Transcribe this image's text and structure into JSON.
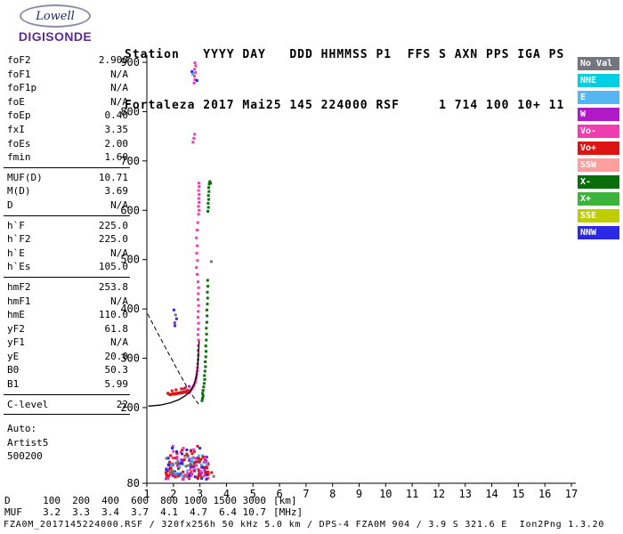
{
  "logo": {
    "line1": "Lowell",
    "line2": "DIGISONDE"
  },
  "header": {
    "line1": "Station   YYYY DAY   DDD HHMMSS P1  FFS S AXN PPS IGA PS",
    "line2": "Fortaleza 2017 Mai25 145 224000 RSF     1 714 100 10+ 11"
  },
  "params": {
    "groups": [
      {
        "rows": [
          [
            "foF2",
            "2.900"
          ],
          [
            "foF1",
            "N/A"
          ],
          [
            "foF1p",
            "N/A"
          ],
          [
            "foE",
            "N/A"
          ],
          [
            "foEp",
            "0.40"
          ],
          [
            "fxI",
            "3.35"
          ],
          [
            "foEs",
            "2.00"
          ],
          [
            "fmin",
            "1.60"
          ]
        ]
      },
      {
        "rows": [
          [
            "MUF(D)",
            "10.71"
          ],
          [
            "M(D)",
            "3.69"
          ],
          [
            "D",
            "N/A"
          ]
        ]
      },
      {
        "rows": [
          [
            "h`F",
            "225.0"
          ],
          [
            "h`F2",
            "225.0"
          ],
          [
            "h`E",
            "N/A"
          ],
          [
            "h`Es",
            "105.0"
          ]
        ]
      },
      {
        "rows": [
          [
            "hmF2",
            "253.8"
          ],
          [
            "hmF1",
            "N/A"
          ],
          [
            "hmE",
            "110.0"
          ],
          [
            "yF2",
            "61.8"
          ],
          [
            "yF1",
            "N/A"
          ],
          [
            "yE",
            "20.0"
          ],
          [
            "B0",
            "50.3"
          ],
          [
            "B1",
            "5.99"
          ]
        ]
      },
      {
        "rows": [
          [
            "C-level",
            "22"
          ]
        ]
      },
      {
        "rows": [
          [
            "Auto:",
            ""
          ],
          [
            "Artist5",
            ""
          ],
          [
            "500200",
            ""
          ]
        ]
      }
    ]
  },
  "colors": {
    "noval": "#75757f",
    "nne": "#00cfe4",
    "e": "#55b6f2",
    "w": "#b019c8",
    "vom": "#f13bb0",
    "vop": "#dc1414",
    "ssw": "#ff9e9e",
    "xm": "#0a6e0a",
    "xp": "#3cb43c",
    "sse": "#becd00",
    "nnw": "#2a2ae6"
  },
  "legend": {
    "items": [
      {
        "key": "noval",
        "label": "No Val"
      },
      {
        "key": "nne",
        "label": "NNE"
      },
      {
        "key": "e",
        "label": "E"
      },
      {
        "key": "w",
        "label": "W"
      },
      {
        "key": "vom",
        "label": "Vo-"
      },
      {
        "key": "vop",
        "label": "Vo+"
      },
      {
        "key": "ssw",
        "label": "SSW"
      },
      {
        "key": "xm",
        "label": "X-"
      },
      {
        "key": "xp",
        "label": "X+"
      },
      {
        "key": "sse",
        "label": "SSE"
      },
      {
        "key": "nnw",
        "label": "NNW"
      }
    ]
  },
  "muf_table": {
    "rows": [
      {
        "label": "D",
        "values": [
          "100",
          "200",
          "400",
          "600",
          "800",
          "1000",
          "1500",
          "3000"
        ],
        "unit": "[km]"
      },
      {
        "label": "MUF",
        "values": [
          "3.2",
          "3.3",
          "3.4",
          "3.7",
          "4.1",
          "4.7",
          "6.4",
          "10.7"
        ],
        "unit": "[MHz]"
      }
    ]
  },
  "footer": {
    "info": "FZA0M_2017145224000.RSF / 320fx256h 50 kHz 5.0 km / DPS-4 FZA0M 904 / 3.9 S 321.6 E  Ion2Png 1.3.20"
  },
  "chart_data": {
    "type": "scatter",
    "x_axis": {
      "min": 1,
      "max": 17,
      "ticks": [
        1,
        2,
        3,
        4,
        5,
        6,
        7,
        8,
        9,
        10,
        11,
        12,
        13,
        14,
        15,
        16,
        17
      ],
      "unit": "[MHz]"
    },
    "y_axis": {
      "min": 80,
      "max": 900,
      "ticks": [
        900,
        800,
        700,
        600,
        500,
        400,
        300,
        200,
        80
      ],
      "unit": "[km]"
    },
    "series": [
      {
        "name": "F-trace O-mode (Vo-)",
        "color_key": "vom",
        "points": [
          [
            2.5,
            230
          ],
          [
            2.55,
            231
          ],
          [
            2.6,
            230
          ],
          [
            2.63,
            233
          ],
          [
            2.66,
            236
          ],
          [
            2.7,
            238
          ],
          [
            2.73,
            241
          ],
          [
            2.76,
            244
          ],
          [
            2.79,
            247
          ],
          [
            2.82,
            251
          ],
          [
            2.84,
            256
          ],
          [
            2.86,
            261
          ],
          [
            2.88,
            267
          ],
          [
            2.9,
            274
          ],
          [
            2.91,
            281
          ],
          [
            2.92,
            289
          ],
          [
            2.93,
            297
          ],
          [
            2.94,
            306
          ],
          [
            2.93,
            316
          ],
          [
            2.94,
            326
          ],
          [
            2.95,
            337
          ],
          [
            2.93,
            348
          ],
          [
            2.94,
            359
          ],
          [
            2.95,
            371
          ],
          [
            2.93,
            383
          ],
          [
            2.94,
            395
          ],
          [
            2.95,
            407
          ],
          [
            2.93,
            419
          ],
          [
            2.94,
            431
          ],
          [
            2.95,
            443
          ],
          [
            2.93,
            455
          ],
          [
            2.9,
            470
          ],
          [
            2.87,
            484
          ],
          [
            2.91,
            498
          ],
          [
            2.88,
            513
          ],
          [
            2.9,
            528
          ],
          [
            2.87,
            544
          ],
          [
            2.9,
            560
          ],
          [
            2.92,
            575
          ],
          [
            2.95,
            592
          ],
          [
            2.97,
            600
          ],
          [
            2.95,
            608
          ],
          [
            2.97,
            616
          ],
          [
            2.96,
            624
          ],
          [
            2.97,
            632
          ],
          [
            2.95,
            640
          ],
          [
            2.97,
            648
          ],
          [
            2.96,
            655
          ],
          [
            2.74,
            738
          ],
          [
            2.77,
            746
          ],
          [
            2.8,
            754
          ],
          [
            2.78,
            858
          ],
          [
            2.81,
            865
          ],
          [
            2.79,
            872
          ],
          [
            2.83,
            879
          ],
          [
            2.8,
            886
          ],
          [
            2.84,
            893
          ],
          [
            2.81,
            899
          ]
        ]
      },
      {
        "name": "F-trace low (Vo+)",
        "color_key": "vop",
        "points": [
          [
            1.79,
            229
          ],
          [
            1.84,
            227
          ],
          [
            1.89,
            226
          ],
          [
            1.94,
            227
          ],
          [
            1.99,
            228
          ],
          [
            2.04,
            227
          ],
          [
            2.09,
            229
          ],
          [
            2.14,
            228
          ],
          [
            2.19,
            230
          ],
          [
            2.24,
            229
          ],
          [
            2.29,
            231
          ],
          [
            2.34,
            230
          ],
          [
            2.39,
            232
          ],
          [
            2.44,
            231
          ],
          [
            2.49,
            233
          ],
          [
            2.54,
            235
          ],
          [
            2.3,
            238
          ],
          [
            2.1,
            236
          ],
          [
            1.95,
            234
          ],
          [
            2.45,
            240
          ],
          [
            3.44,
            97
          ]
        ]
      },
      {
        "name": "X-trace (X-)",
        "color_key": "xm",
        "points": [
          [
            3.08,
            214
          ],
          [
            3.1,
            219
          ],
          [
            3.12,
            224
          ],
          [
            3.1,
            229
          ],
          [
            3.12,
            235
          ],
          [
            3.14,
            242
          ],
          [
            3.16,
            249
          ],
          [
            3.18,
            257
          ],
          [
            3.17,
            265
          ],
          [
            3.19,
            274
          ],
          [
            3.21,
            283
          ],
          [
            3.2,
            293
          ],
          [
            3.22,
            303
          ],
          [
            3.23,
            314
          ],
          [
            3.22,
            325
          ],
          [
            3.24,
            337
          ],
          [
            3.25,
            349
          ],
          [
            3.24,
            361
          ],
          [
            3.26,
            373
          ],
          [
            3.27,
            386
          ],
          [
            3.26,
            398
          ],
          [
            3.28,
            410
          ],
          [
            3.29,
            422
          ],
          [
            3.28,
            434
          ],
          [
            3.3,
            446
          ],
          [
            3.29,
            458
          ],
          [
            3.3,
            598
          ],
          [
            3.32,
            606
          ],
          [
            3.31,
            614
          ],
          [
            3.33,
            622
          ],
          [
            3.32,
            630
          ],
          [
            3.34,
            638
          ],
          [
            3.33,
            646
          ],
          [
            3.35,
            653
          ],
          [
            3.37,
            658
          ],
          [
            3.4,
            655
          ]
        ]
      },
      {
        "name": "scatter (NNW)",
        "color_key": "nnw",
        "points": [
          [
            2.02,
            398
          ],
          [
            2.12,
            380
          ],
          [
            2.06,
            366
          ],
          [
            2.7,
            881
          ],
          [
            2.89,
            863
          ]
        ]
      },
      {
        "name": "scatter (No Val)",
        "color_key": "noval",
        "points": [
          [
            2.08,
            388
          ],
          [
            3.43,
            496
          ],
          [
            3.52,
            91
          ]
        ]
      },
      {
        "name": "scatter (W)",
        "color_key": "w",
        "points": [
          [
            2.05,
            372
          ],
          [
            2.6,
            243
          ],
          [
            2.4,
            238
          ]
        ]
      },
      {
        "name": "scatter (NNE)",
        "color_key": "nne",
        "points": [
          [
            2.73,
            876
          ]
        ]
      }
    ],
    "noise_bands": [
      {
        "f_range": [
          1.72,
          3.32
        ],
        "h_range": [
          86,
          124
        ],
        "count": 170,
        "color_keys": [
          "vop",
          "vop",
          "vom",
          "vom",
          "nnw",
          "w",
          "e",
          "vop",
          "nnw",
          "noval"
        ]
      },
      {
        "f_range": [
          1.95,
          3.1
        ],
        "h_range": [
          124,
          140
        ],
        "count": 18,
        "color_keys": [
          "vop",
          "nnw",
          "vom"
        ]
      }
    ],
    "dashed_line": [
      [
        1.03,
        390
      ],
      [
        1.4,
        352
      ],
      [
        1.8,
        312
      ],
      [
        2.2,
        272
      ],
      [
        2.5,
        243
      ],
      [
        2.7,
        226
      ],
      [
        2.85,
        214
      ],
      [
        2.95,
        207
      ]
    ],
    "profile_curve": [
      [
        1.05,
        203
      ],
      [
        1.5,
        205
      ],
      [
        1.9,
        210
      ],
      [
        2.2,
        216
      ],
      [
        2.45,
        224
      ],
      [
        2.65,
        234
      ],
      [
        2.78,
        247
      ],
      [
        2.87,
        263
      ],
      [
        2.92,
        285
      ],
      [
        2.95,
        312
      ],
      [
        2.97,
        335
      ]
    ]
  }
}
